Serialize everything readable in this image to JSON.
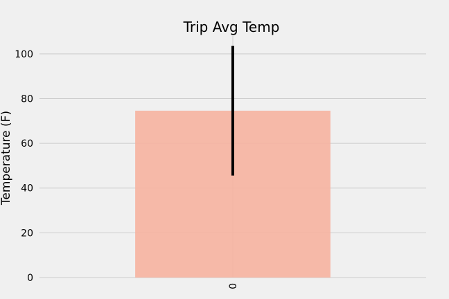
{
  "chart_data": {
    "type": "bar",
    "title": "Trip Avg Temp",
    "xlabel": "",
    "ylabel": "Temperature (F)",
    "categories": [
      "0"
    ],
    "values": [
      74.6
    ],
    "error": [
      29.0
    ],
    "ylim": [
      0,
      108
    ],
    "yticks": [
      0,
      20,
      40,
      60,
      80,
      100
    ],
    "grid": true,
    "legend": "none",
    "colors": {
      "bar": "#f6b3a0",
      "error_bar": "#000000",
      "grid": "#cbcbcb",
      "background": "#f0f0f0"
    }
  }
}
